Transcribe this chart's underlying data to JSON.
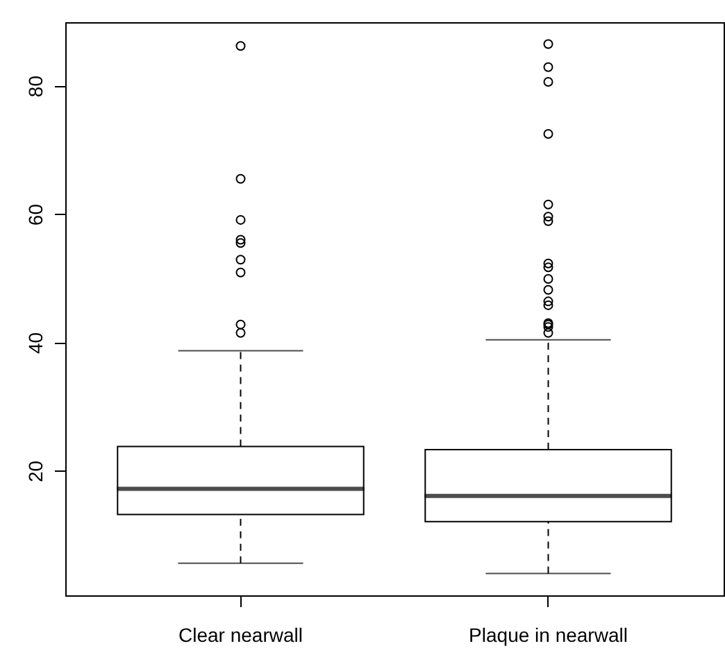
{
  "chart_data": {
    "type": "box",
    "categories": [
      "Clear nearwall",
      "Plaque in nearwall"
    ],
    "boxes": [
      {
        "low": 5.6,
        "q1": 13.2,
        "median": 17.2,
        "q3": 23.8,
        "high": 38.7,
        "outliers": [
          86.2,
          65.5,
          59.1,
          56.0,
          55.5,
          52.9,
          50.9,
          42.8,
          41.5
        ]
      },
      {
        "low": 4.0,
        "q1": 12.1,
        "median": 16.1,
        "q3": 23.3,
        "high": 40.4,
        "outliers": [
          86.5,
          82.9,
          80.6,
          72.5,
          61.5,
          59.6,
          58.9,
          52.3,
          51.7,
          49.9,
          48.2,
          46.4,
          45.8,
          43.0,
          42.8,
          42.4,
          41.5
        ]
      }
    ],
    "ylim": [
      0.6,
      89.9
    ],
    "yticks": [
      20,
      40,
      60,
      80
    ],
    "color": "#000000"
  }
}
